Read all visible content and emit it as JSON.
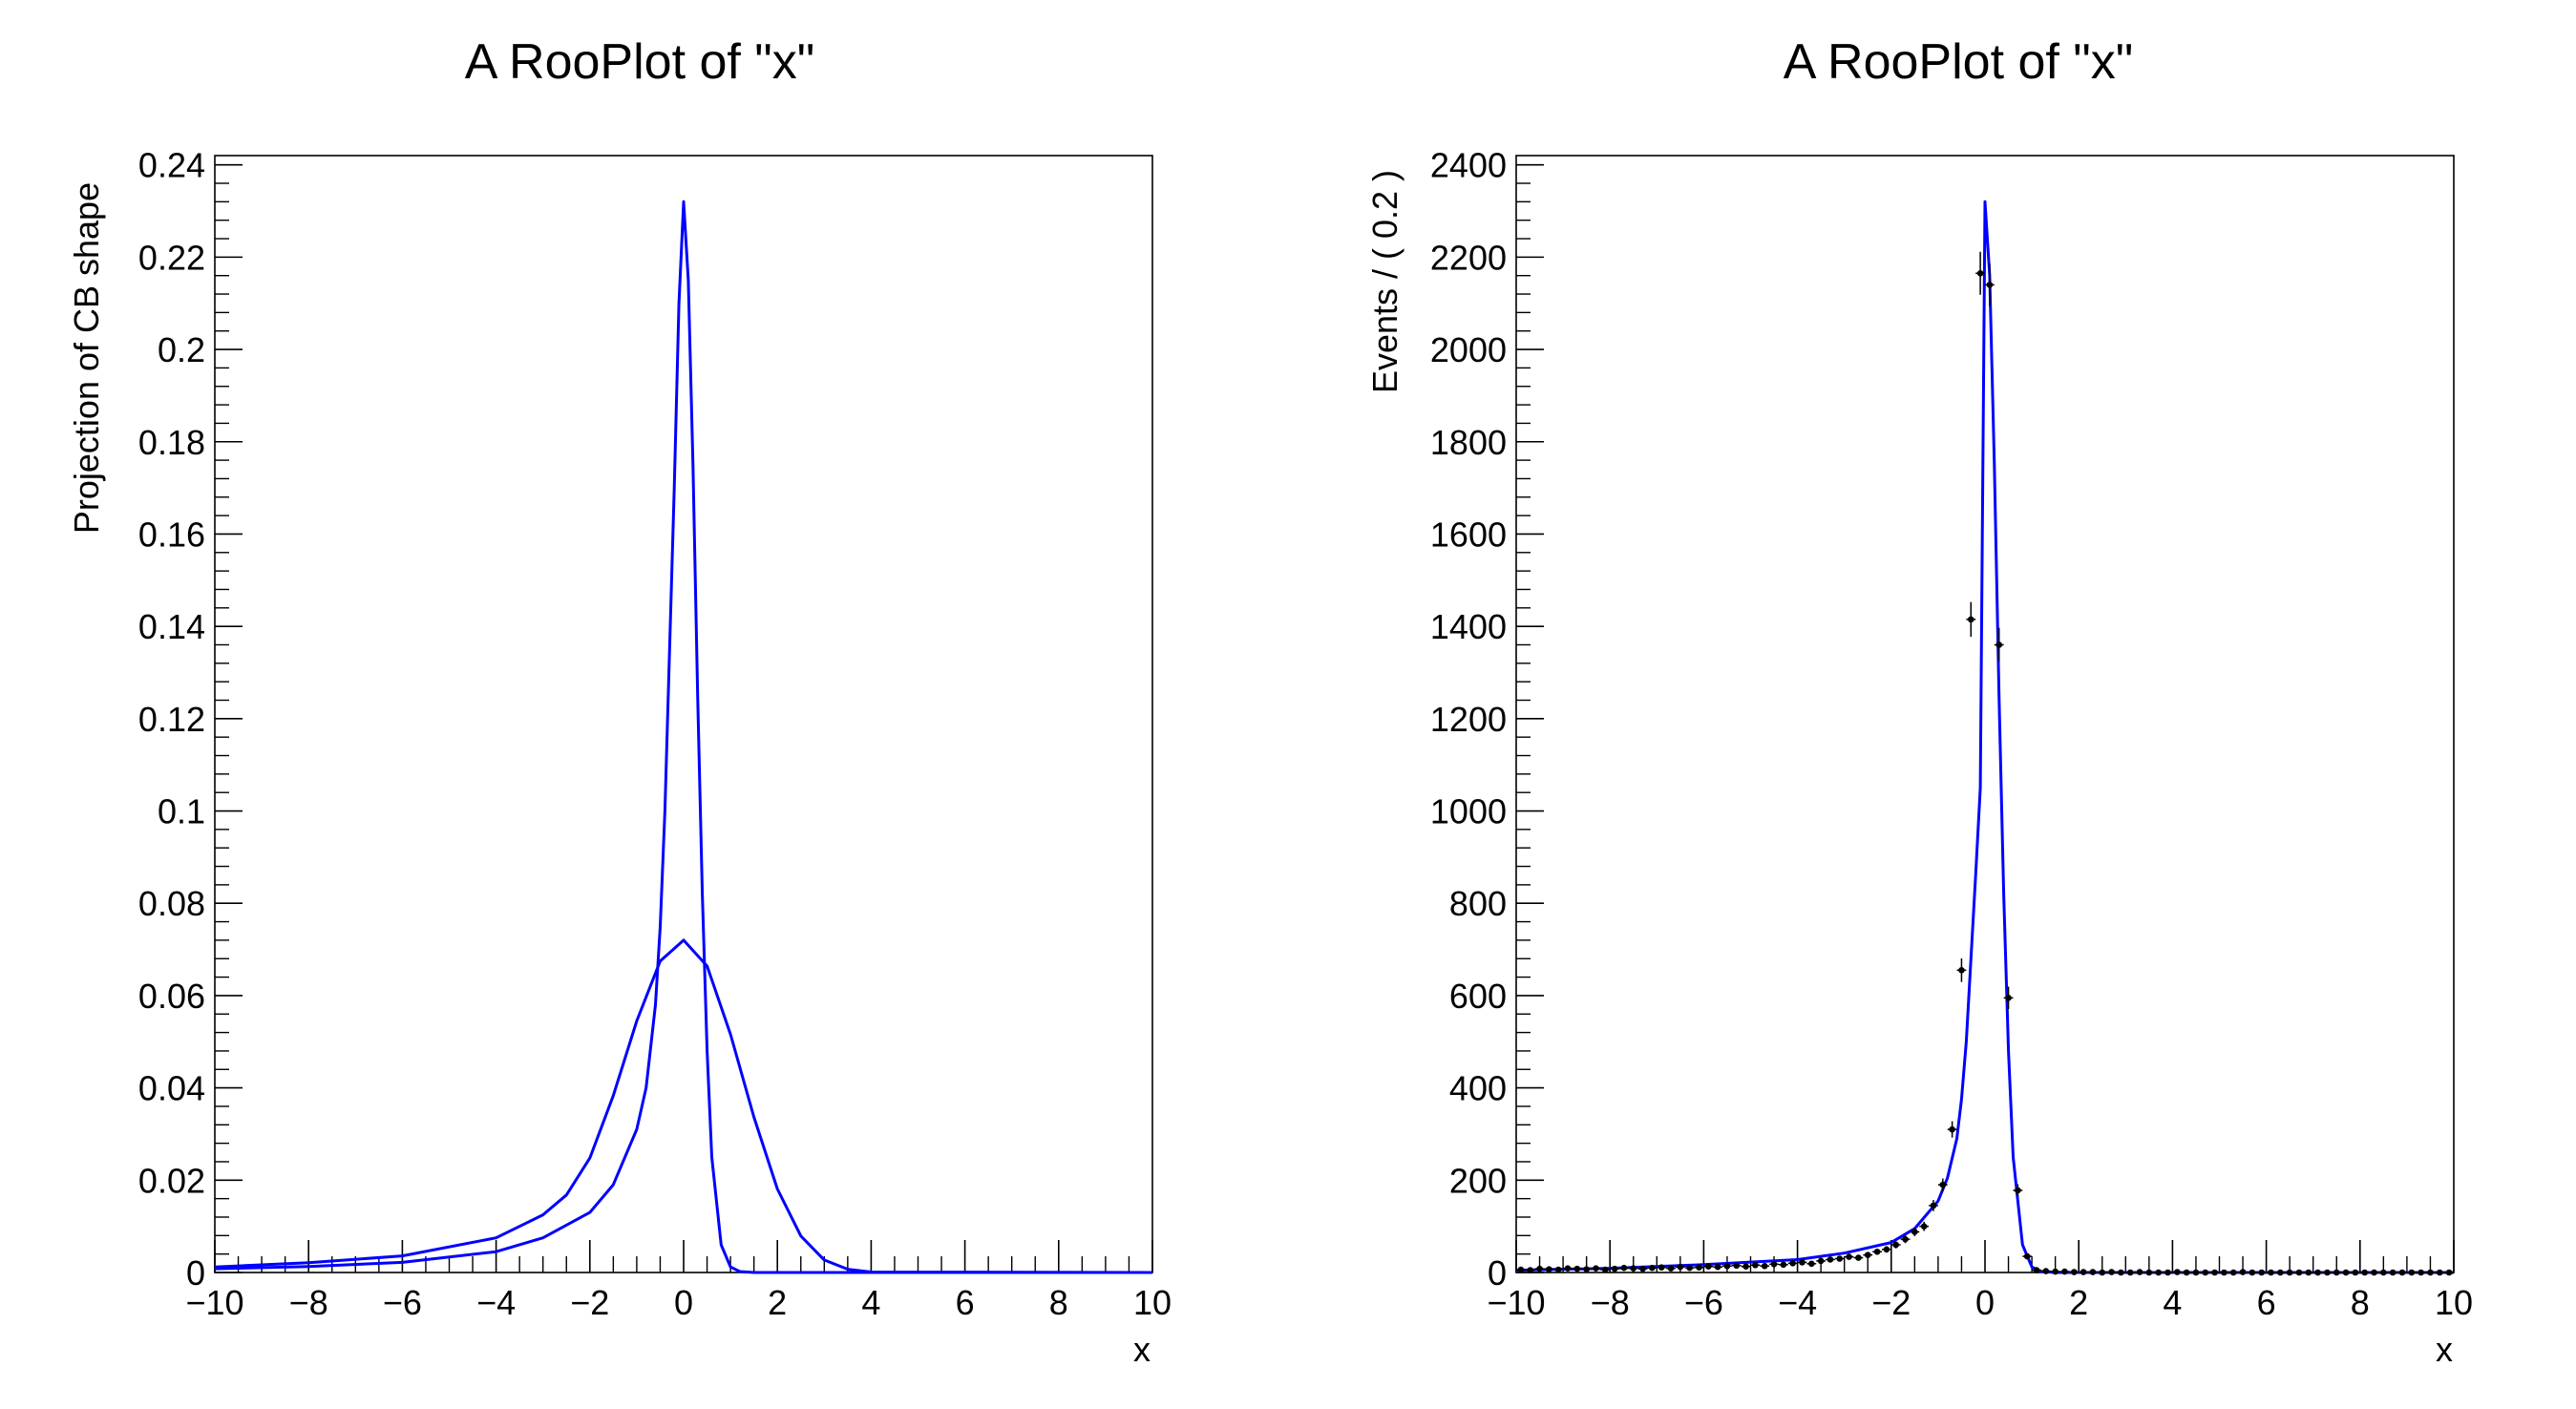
{
  "chart_data": [
    {
      "type": "line",
      "title": "A RooPlot of \"x\"",
      "xlabel": "x",
      "ylabel": "Projection of CB shape",
      "xlim": [
        -10,
        10
      ],
      "ylim": [
        0,
        0.242
      ],
      "grid": false,
      "legend": "none",
      "x_ticks": [
        "−10",
        "−8",
        "−6",
        "−4",
        "−2",
        "0",
        "2",
        "4",
        "6",
        "8",
        "10"
      ],
      "y_ticks": [
        "0",
        "0.02",
        "0.04",
        "0.06",
        "0.08",
        "0.1",
        "0.12",
        "0.14",
        "0.16",
        "0.18",
        "0.2",
        "0.22",
        "0.24"
      ],
      "line_color": "#0000ff",
      "series": [
        {
          "x": [
            -10,
            -8,
            -6,
            -4,
            -3,
            -2,
            -1.5,
            -1,
            -0.8,
            -0.6,
            -0.5,
            -0.4,
            -0.3,
            -0.2,
            -0.1,
            0,
            0.1,
            0.2,
            0.3,
            0.4,
            0.5,
            0.6,
            0.8,
            1.0,
            1.2,
            1.5,
            2,
            10
          ],
          "y": [
            0.0008,
            0.0013,
            0.0022,
            0.0045,
            0.0075,
            0.013,
            0.019,
            0.031,
            0.04,
            0.058,
            0.075,
            0.1,
            0.135,
            0.17,
            0.21,
            0.232,
            0.215,
            0.175,
            0.125,
            0.082,
            0.048,
            0.025,
            0.006,
            0.0012,
            0.0002,
            0,
            0,
            0
          ]
        },
        {
          "x": [
            -10,
            -8,
            -6,
            -4,
            -3,
            -2.5,
            -2,
            -1.5,
            -1,
            -0.5,
            0,
            0.5,
            1,
            1.5,
            2,
            2.5,
            3,
            3.5,
            4,
            10
          ],
          "y": [
            0.0012,
            0.0021,
            0.0036,
            0.0075,
            0.0125,
            0.0168,
            0.0248,
            0.0383,
            0.0545,
            0.0675,
            0.072,
            0.0664,
            0.0516,
            0.0337,
            0.0181,
            0.0079,
            0.0027,
            0.0007,
            0.0001,
            0
          ]
        }
      ]
    },
    {
      "type": "scatter",
      "title": "A RooPlot of \"x\"",
      "xlabel": "x",
      "ylabel": "Events / ( 0.2 )",
      "xlim": [
        -10,
        10
      ],
      "ylim": [
        0,
        2420
      ],
      "grid": false,
      "legend": "none",
      "x_ticks": [
        "−10",
        "−8",
        "−6",
        "−4",
        "−2",
        "0",
        "2",
        "4",
        "6",
        "8",
        "10"
      ],
      "y_ticks": [
        "0",
        "200",
        "400",
        "600",
        "800",
        "1000",
        "1200",
        "1400",
        "1600",
        "1800",
        "2000",
        "2200",
        "2400"
      ],
      "marker_color": "#000000",
      "line_color": "#0000ff",
      "points_x": [
        -9.9,
        -9.7,
        -9.5,
        -9.3,
        -9.1,
        -8.9,
        -8.7,
        -8.5,
        -8.3,
        -8.1,
        -7.9,
        -7.7,
        -7.5,
        -7.3,
        -7.1,
        -6.9,
        -6.7,
        -6.5,
        -6.3,
        -6.1,
        -5.9,
        -5.7,
        -5.5,
        -5.3,
        -5.1,
        -4.9,
        -4.7,
        -4.5,
        -4.3,
        -4.1,
        -3.9,
        -3.7,
        -3.5,
        -3.3,
        -3.1,
        -2.9,
        -2.7,
        -2.5,
        -2.3,
        -2.1,
        -1.9,
        -1.7,
        -1.5,
        -1.3,
        -1.1,
        -0.9,
        -0.7,
        -0.5,
        -0.3,
        -0.1,
        0.1,
        0.3,
        0.5,
        0.7,
        0.9,
        1.1,
        1.3,
        1.5,
        1.7,
        1.9,
        2.1,
        2.3,
        2.5,
        2.7,
        2.9,
        3.1,
        3.3,
        3.5,
        3.7,
        3.9,
        4.1,
        4.3,
        4.5,
        4.7,
        4.9,
        5.1,
        5.3,
        5.5,
        5.7,
        5.9,
        6.1,
        6.3,
        6.5,
        6.7,
        6.9,
        7.1,
        7.3,
        7.5,
        7.7,
        7.9,
        8.1,
        8.3,
        8.5,
        8.7,
        8.9,
        9.1,
        9.3,
        9.5,
        9.7,
        9.9
      ],
      "points_y": [
        6,
        5,
        8,
        7,
        6,
        9,
        8,
        7,
        9,
        6,
        8,
        10,
        9,
        8,
        10,
        11,
        9,
        12,
        10,
        11,
        13,
        12,
        14,
        15,
        13,
        16,
        14,
        18,
        17,
        20,
        22,
        19,
        25,
        28,
        30,
        34,
        32,
        38,
        45,
        50,
        60,
        72,
        88,
        100,
        145,
        190,
        310,
        655,
        1415,
        2165,
        2140,
        1360,
        595,
        178,
        35,
        5,
        3,
        2,
        2,
        1,
        1,
        1,
        0,
        1,
        0,
        0,
        1,
        0,
        0,
        0,
        1,
        0,
        0,
        0,
        0,
        0,
        0,
        1,
        0,
        0,
        0,
        0,
        0,
        0,
        0,
        0,
        0,
        0,
        0,
        0,
        0,
        0,
        0,
        0,
        0,
        0,
        0,
        0,
        0,
        0
      ],
      "curve_x": [
        -10,
        -8,
        -6,
        -4,
        -3,
        -2,
        -1.5,
        -1,
        -0.8,
        -0.6,
        -0.5,
        -0.4,
        -0.3,
        -0.2,
        -0.1,
        0,
        0.1,
        0.2,
        0.3,
        0.4,
        0.5,
        0.6,
        0.8,
        1.0,
        1.2,
        1.5,
        2,
        10
      ],
      "curve_y": [
        5,
        9,
        17,
        28,
        42,
        65,
        95,
        155,
        205,
        290,
        375,
        500,
        680,
        860,
        1050,
        2320,
        2160,
        1750,
        1250,
        820,
        480,
        250,
        60,
        12,
        2,
        0,
        0,
        0
      ]
    }
  ]
}
